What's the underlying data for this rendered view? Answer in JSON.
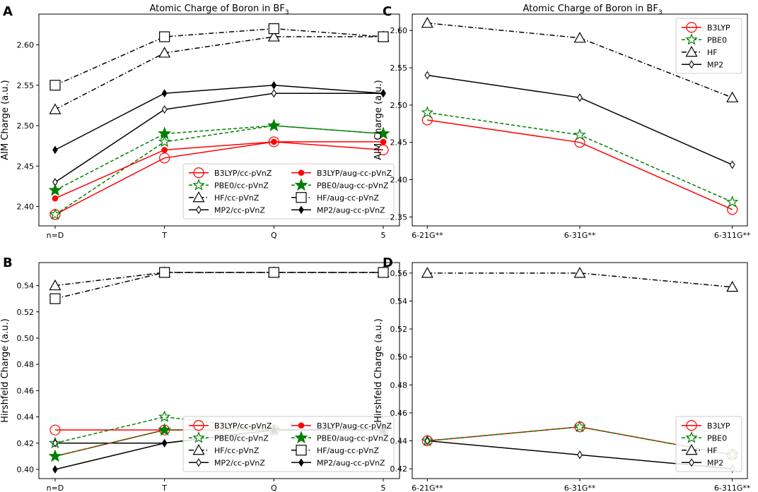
{
  "figure": {
    "title_left": "Atomic Charge of Boron in BF",
    "title_left_sub": "3",
    "title_right": "Atomic Charge of Boron in BF",
    "title_right_sub": "3"
  },
  "colors": {
    "B3LYP": "#ff0000",
    "PBE0": "#008000",
    "HF": "#000000",
    "MP2": "#000000"
  },
  "chart_data": [
    {
      "panel": "A",
      "type": "line",
      "title": "Atomic Charge of Boron in BF3",
      "xlabel": "",
      "ylabel": "AIM Charge (a.u.)",
      "categories": [
        "n=D",
        "T",
        "Q",
        "5"
      ],
      "ylim": [
        2.376,
        2.638
      ],
      "yticks": [
        2.4,
        2.45,
        2.5,
        2.55,
        2.6
      ],
      "ytick_labels": [
        "2.40",
        "2.45",
        "2.50",
        "2.55",
        "2.60"
      ],
      "legend_placement": "lower-right",
      "legend_cols": 2,
      "series": [
        {
          "name": "B3LYP/cc-pVnZ",
          "method": "B3LYP",
          "style": "solid",
          "marker": "circle-open",
          "values": [
            2.39,
            2.46,
            2.48,
            2.47
          ]
        },
        {
          "name": "PBE0/cc-pVnZ",
          "method": "PBE0",
          "style": "dashed",
          "marker": "star-open",
          "values": [
            2.39,
            2.48,
            2.5,
            2.49
          ]
        },
        {
          "name": "HF/cc-pVnZ",
          "method": "HF",
          "style": "dashdot",
          "marker": "triangle-open",
          "values": [
            2.52,
            2.59,
            2.61,
            2.61
          ]
        },
        {
          "name": "MP2/cc-pVnZ",
          "method": "MP2",
          "style": "solid",
          "marker": "diamond-open",
          "values": [
            2.43,
            2.52,
            2.54,
            2.54
          ]
        },
        {
          "name": "B3LYP/aug-cc-pVnZ",
          "method": "B3LYP",
          "style": "solid",
          "marker": "circle-filled",
          "values": [
            2.41,
            2.47,
            2.48,
            2.48
          ]
        },
        {
          "name": "PBE0/aug-cc-pVnZ",
          "method": "PBE0",
          "style": "dashed",
          "marker": "star-filled",
          "values": [
            2.42,
            2.49,
            2.5,
            2.49
          ]
        },
        {
          "name": "HF/aug-cc-pVnZ",
          "method": "HF",
          "style": "dashdot",
          "marker": "square-open",
          "values": [
            2.55,
            2.61,
            2.62,
            2.61
          ]
        },
        {
          "name": "MP2/aug-cc-pVnZ",
          "method": "MP2",
          "style": "solid",
          "marker": "diamond-filled",
          "values": [
            2.47,
            2.54,
            2.55,
            2.54
          ]
        }
      ]
    },
    {
      "panel": "C",
      "type": "line",
      "title": "Atomic Charge of Boron in BF3",
      "xlabel": "",
      "ylabel": "AIM Charge (a.u.)",
      "categories": [
        "6-21G**",
        "6-31G**",
        "6-311G**"
      ],
      "ylim": [
        2.338,
        2.622
      ],
      "yticks": [
        2.35,
        2.4,
        2.45,
        2.5,
        2.55,
        2.6
      ],
      "ytick_labels": [
        "2.35",
        "2.40",
        "2.45",
        "2.50",
        "2.55",
        "2.60"
      ],
      "legend_placement": "upper-right",
      "legend_cols": 1,
      "series": [
        {
          "name": "B3LYP",
          "method": "B3LYP",
          "style": "solid",
          "marker": "circle-open",
          "values": [
            2.48,
            2.45,
            2.36
          ]
        },
        {
          "name": "PBE0",
          "method": "PBE0",
          "style": "dashed",
          "marker": "star-open",
          "values": [
            2.49,
            2.46,
            2.37
          ]
        },
        {
          "name": "HF",
          "method": "HF",
          "style": "dashdot",
          "marker": "triangle-open",
          "values": [
            2.61,
            2.59,
            2.51
          ]
        },
        {
          "name": "MP2",
          "method": "MP2",
          "style": "solid",
          "marker": "diamond-open",
          "values": [
            2.54,
            2.51,
            2.42
          ]
        }
      ]
    },
    {
      "panel": "B",
      "type": "line",
      "title": "",
      "xlabel": "",
      "ylabel": "Hirshfeld Charge (a.u.)",
      "categories": [
        "n=D",
        "T",
        "Q",
        "5"
      ],
      "ylim": [
        0.393,
        0.5575
      ],
      "yticks": [
        0.4,
        0.42,
        0.44,
        0.46,
        0.48,
        0.5,
        0.52,
        0.54
      ],
      "ytick_labels": [
        "0.40",
        "0.42",
        "0.44",
        "0.46",
        "0.48",
        "0.50",
        "0.52",
        "0.54"
      ],
      "legend_placement": "lower-right",
      "legend_cols": 2,
      "series": [
        {
          "name": "B3LYP/cc-pVnZ",
          "method": "B3LYP",
          "style": "solid",
          "marker": "circle-open",
          "values": [
            0.43,
            0.43,
            0.43,
            0.43
          ]
        },
        {
          "name": "PBE0/cc-pVnZ",
          "method": "PBE0",
          "style": "dashed",
          "marker": "star-open",
          "values": [
            0.42,
            0.44,
            0.43,
            0.43
          ]
        },
        {
          "name": "HF/cc-pVnZ",
          "method": "HF",
          "style": "dashdot",
          "marker": "triangle-open",
          "values": [
            0.54,
            0.55,
            0.55,
            0.55
          ]
        },
        {
          "name": "MP2/cc-pVnZ",
          "method": "MP2",
          "style": "solid",
          "marker": "diamond-open",
          "values": [
            0.42,
            0.42,
            0.43,
            0.43
          ]
        },
        {
          "name": "B3LYP/aug-cc-pVnZ",
          "method": "B3LYP",
          "style": "solid",
          "marker": "circle-filled",
          "values": [
            0.41,
            0.43,
            0.43,
            0.43
          ]
        },
        {
          "name": "PBE0/aug-cc-pVnZ",
          "method": "PBE0",
          "style": "dashed",
          "marker": "star-filled",
          "values": [
            0.41,
            0.43,
            0.43,
            0.43
          ]
        },
        {
          "name": "HF/aug-cc-pVnZ",
          "method": "HF",
          "style": "dashdot",
          "marker": "square-open",
          "values": [
            0.53,
            0.55,
            0.55,
            0.55
          ]
        },
        {
          "name": "MP2/aug-cc-pVnZ",
          "method": "MP2",
          "style": "solid",
          "marker": "diamond-filled",
          "values": [
            0.4,
            0.42,
            0.43,
            0.43
          ]
        }
      ]
    },
    {
      "panel": "D",
      "type": "line",
      "title": "",
      "xlabel": "",
      "ylabel": "Hirshfeld Charge (a.u.)",
      "categories": [
        "6-21G**",
        "6-31G**",
        "6-311G**"
      ],
      "ylim": [
        0.413,
        0.5675
      ],
      "yticks": [
        0.42,
        0.44,
        0.46,
        0.48,
        0.5,
        0.52,
        0.54,
        0.56
      ],
      "ytick_labels": [
        "0.42",
        "0.44",
        "0.46",
        "0.48",
        "0.50",
        "0.52",
        "0.54",
        "0.56"
      ],
      "legend_placement": "lower-right",
      "legend_cols": 1,
      "series": [
        {
          "name": "B3LYP",
          "method": "B3LYP",
          "style": "solid",
          "marker": "circle-open",
          "values": [
            0.44,
            0.45,
            0.43
          ]
        },
        {
          "name": "PBE0",
          "method": "PBE0",
          "style": "dashed",
          "marker": "star-open",
          "values": [
            0.44,
            0.45,
            0.43
          ]
        },
        {
          "name": "HF",
          "method": "HF",
          "style": "dashdot",
          "marker": "triangle-open",
          "values": [
            0.56,
            0.56,
            0.55
          ]
        },
        {
          "name": "MP2",
          "method": "MP2",
          "style": "solid",
          "marker": "diamond-open",
          "values": [
            0.44,
            0.43,
            0.42
          ]
        }
      ]
    }
  ]
}
